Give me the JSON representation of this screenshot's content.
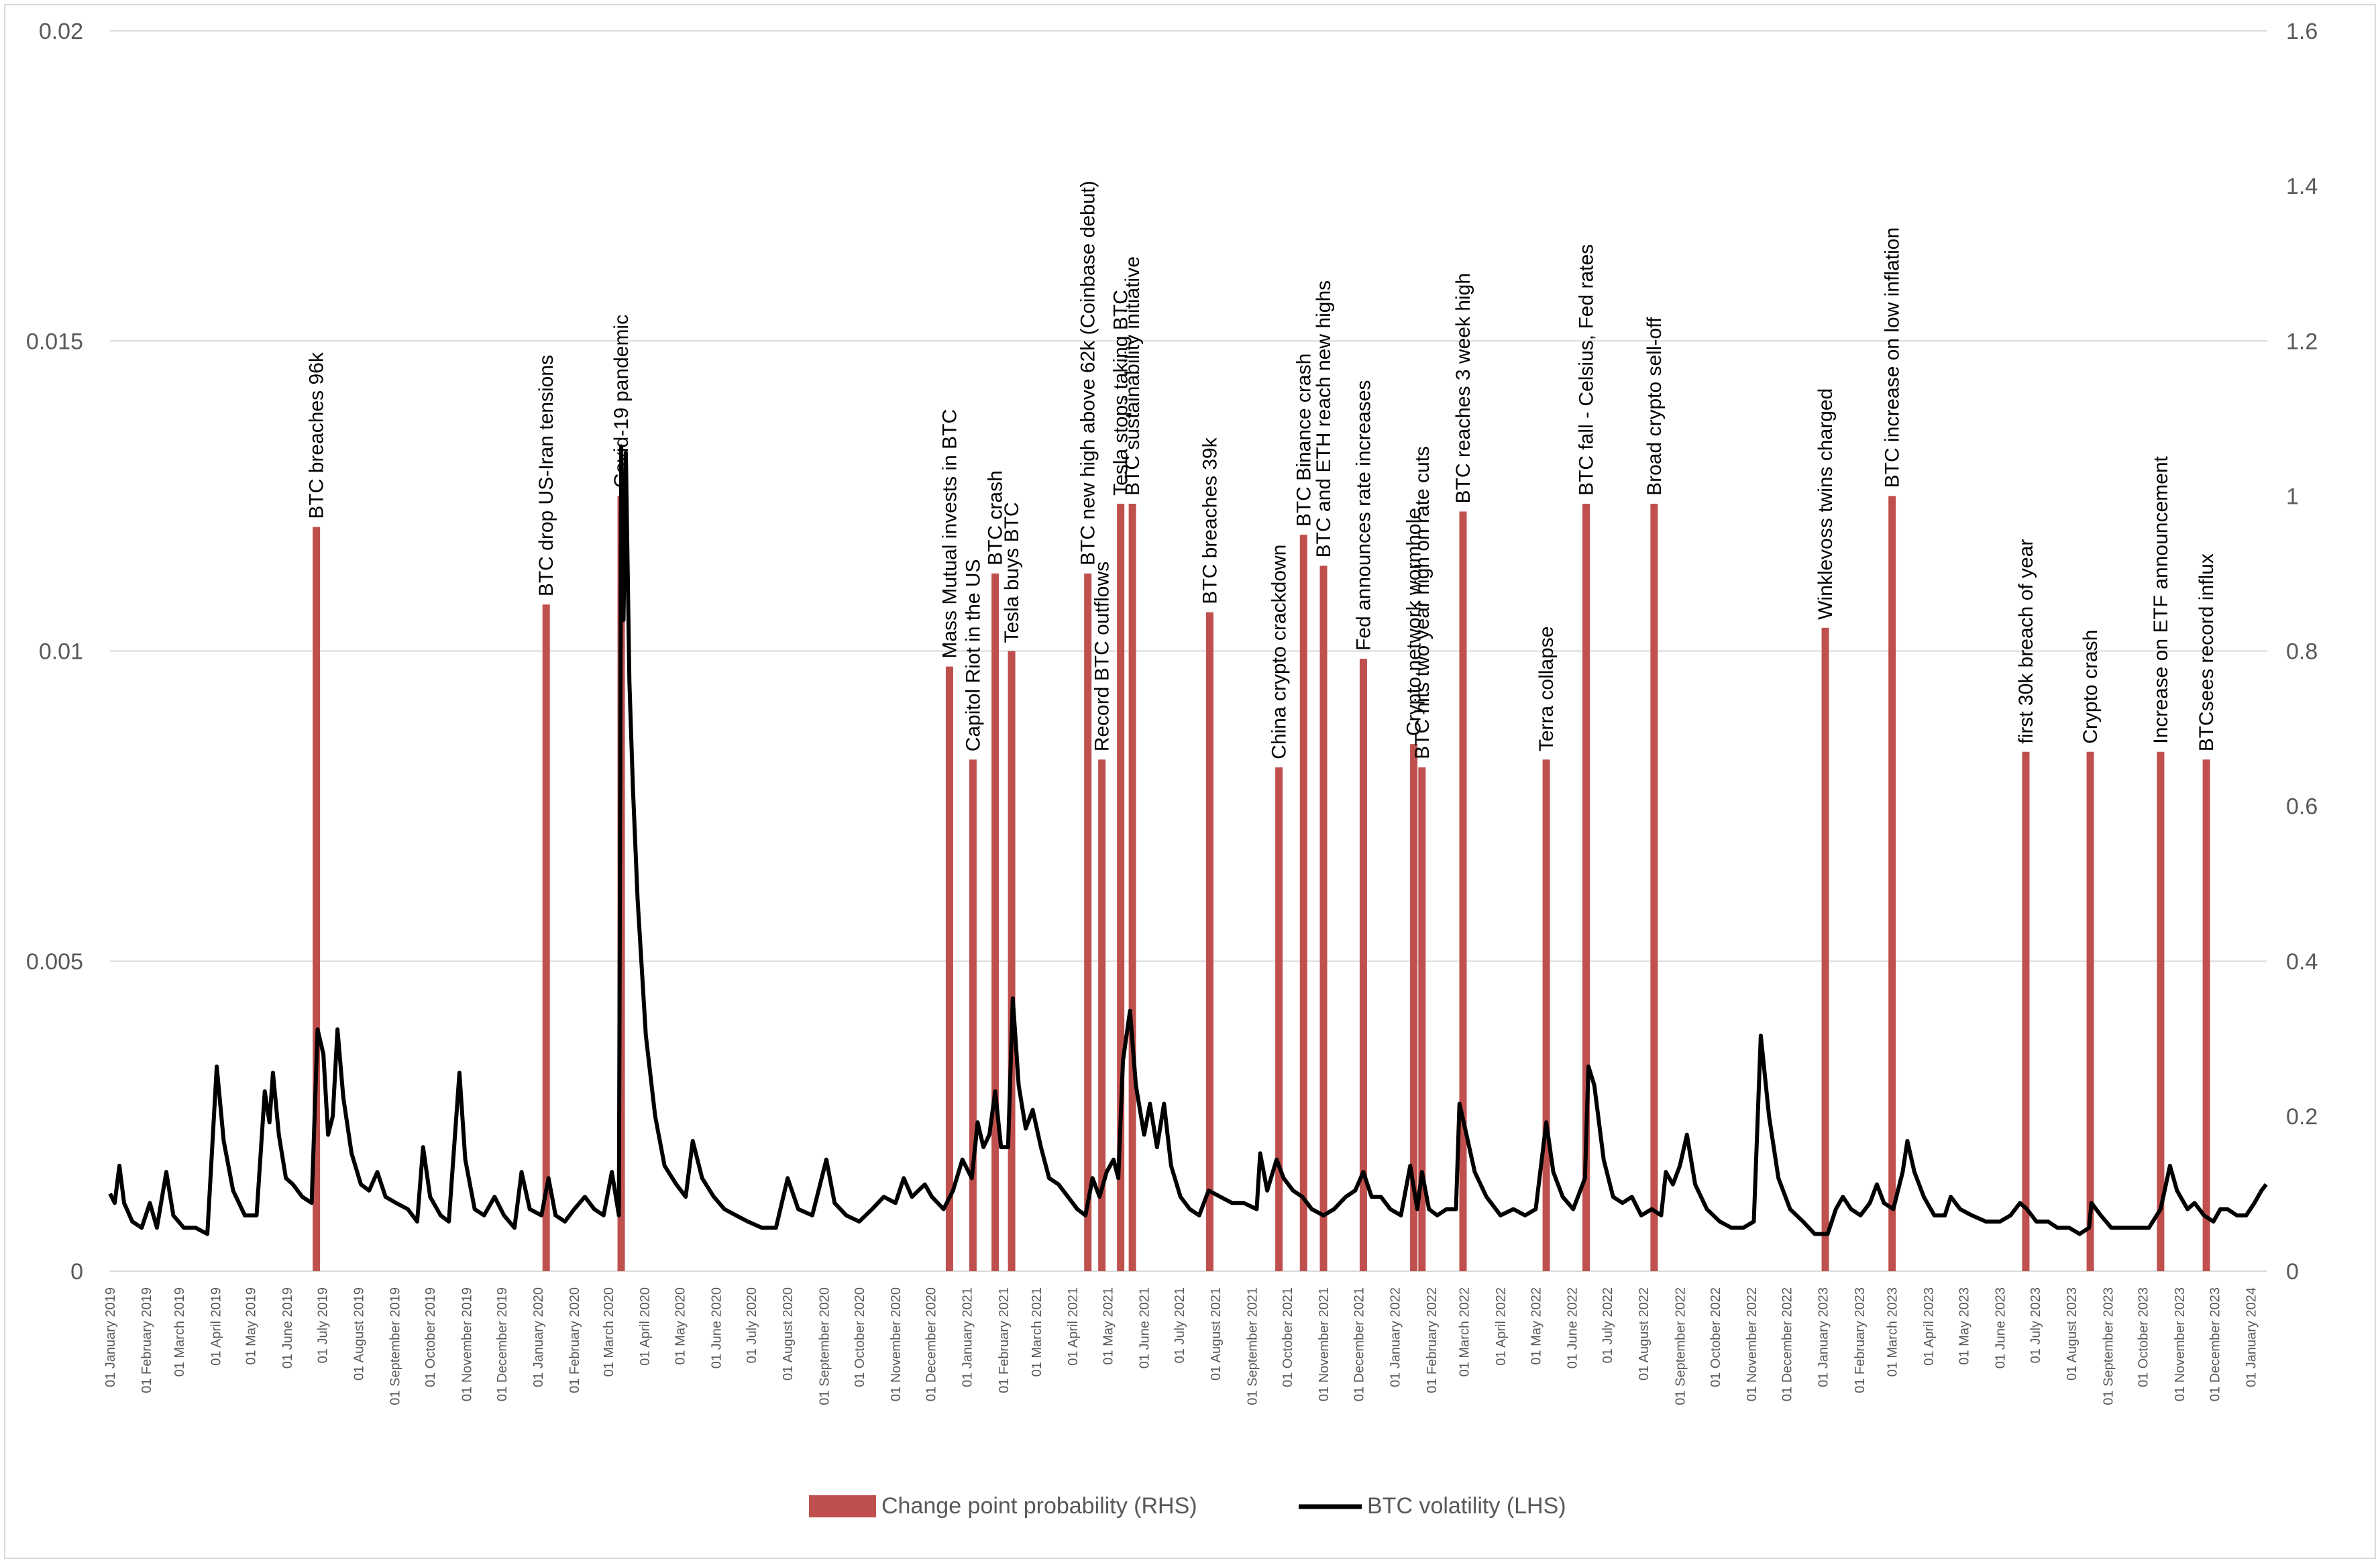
{
  "chart_data": {
    "type": "bar+line",
    "title": "",
    "left_axis": {
      "label": "BTC volatility (LHS)",
      "range": [
        0,
        0.02
      ],
      "ticks": [
        "0",
        "0.005",
        "0.01",
        "0.015",
        "0.02"
      ],
      "tick_values": [
        0,
        0.005,
        0.01,
        0.015,
        0.02
      ]
    },
    "right_axis": {
      "label": "Change point probability (RHS)",
      "range": [
        0,
        1.6
      ],
      "ticks": [
        "0",
        "0.2",
        "0.4",
        "0.6",
        "0.8",
        "1",
        "1.2",
        "1.4",
        "1.6"
      ],
      "tick_values": [
        0,
        0.2,
        0.4,
        0.6,
        0.8,
        1,
        1.2,
        1.4,
        1.6
      ]
    },
    "grid": true,
    "x_range": [
      "2019-01-01",
      "2024-01-15"
    ],
    "x_ticks": [
      "01 January 2019",
      "01 February 2019",
      "01 March 2019",
      "01 April 2019",
      "01 May 2019",
      "01 June 2019",
      "01 July 2019",
      "01 August 2019",
      "01 September 2019",
      "01 October 2019",
      "01 November 2019",
      "01 December 2019",
      "01 January 2020",
      "01 February 2020",
      "01 March 2020",
      "01 April 2020",
      "01 May 2020",
      "01 June 2020",
      "01 July 2020",
      "01 August 2020",
      "01 September 2020",
      "01 October 2020",
      "01 November 2020",
      "01 December 2020",
      "01 January 2021",
      "01 February 2021",
      "01 March 2021",
      "01 April 2021",
      "01 May 2021",
      "01 June 2021",
      "01 July 2021",
      "01 August 2021",
      "01 September 2021",
      "01 October 2021",
      "01 November 2021",
      "01 December 2021",
      "01 January 2022",
      "01 February 2022",
      "01 March 2022",
      "01 April 2022",
      "01 May 2022",
      "01 June 2022",
      "01 July 2022",
      "01 August 2022",
      "01 September 2022",
      "01 October 2022",
      "01 November 2022",
      "01 December 2022",
      "01 January 2023",
      "01 February 2023",
      "01 March 2023",
      "01 April 2023",
      "01 May 2023",
      "01 June 2023",
      "01 July 2023",
      "01 August 2023",
      "01 September 2023",
      "01 October 2023",
      "01 November 2023",
      "01 December 2023",
      "01 January 2024"
    ],
    "legend": [
      "Change point probability (RHS)",
      "BTC volatility (LHS)"
    ],
    "legend_position": "bottom",
    "colors": {
      "bar": "#c0504d",
      "line": "#000000",
      "grid": "#d9d9d9",
      "text": "#595959"
    },
    "change_points": [
      {
        "date": "2019-06-26",
        "prob": 0.96,
        "label": "BTC breaches 96k"
      },
      {
        "date": "2020-01-08",
        "prob": 0.86,
        "label": "BTC drop US-Iran tensions"
      },
      {
        "date": "2020-03-12",
        "prob": 1.0,
        "label": "Covid-19 pandemic"
      },
      {
        "date": "2020-12-17",
        "prob": 0.78,
        "label": "Mass Mutual invests in BTC"
      },
      {
        "date": "2021-01-06",
        "prob": 0.66,
        "label": "Capitol Riot in the US"
      },
      {
        "date": "2021-01-25",
        "prob": 0.9,
        "label": "BTC crash"
      },
      {
        "date": "2021-02-08",
        "prob": 0.8,
        "label": "Tesla buys BTC"
      },
      {
        "date": "2021-04-14",
        "prob": 0.9,
        "label": "BTC new high above 62k (Coinbase debut)"
      },
      {
        "date": "2021-04-26",
        "prob": 0.66,
        "label": "Record BTC outflows"
      },
      {
        "date": "2021-05-12",
        "prob": 0.99,
        "label": "Tesla stops taking BTC"
      },
      {
        "date": "2021-05-22",
        "prob": 0.99,
        "label": "BTC sustainability initiative"
      },
      {
        "date": "2021-07-27",
        "prob": 0.85,
        "label": "BTC breaches 39k"
      },
      {
        "date": "2021-09-24",
        "prob": 0.65,
        "label": "China crypto crackdown"
      },
      {
        "date": "2021-10-15",
        "prob": 0.95,
        "label": "BTC Binance crash"
      },
      {
        "date": "2021-11-01",
        "prob": 0.91,
        "label": "BTC and ETH reach new highs"
      },
      {
        "date": "2021-12-05",
        "prob": 0.79,
        "label": "Fed announces rate increases"
      },
      {
        "date": "2022-01-17",
        "prob": 0.68,
        "label": "Crypto network wormhole"
      },
      {
        "date": "2022-01-24",
        "prob": 0.65,
        "label": "BTC hits two year high on rate cuts"
      },
      {
        "date": "2022-02-28",
        "prob": 0.98,
        "label": "BTC reaches 3 week high"
      },
      {
        "date": "2022-05-10",
        "prob": 0.66,
        "label": "Terra collapse"
      },
      {
        "date": "2022-06-13",
        "prob": 0.99,
        "label": "BTC fall - Celsius, Fed rates"
      },
      {
        "date": "2022-08-10",
        "prob": 0.99,
        "label": "Broad crypto sell-off"
      },
      {
        "date": "2023-01-03",
        "prob": 0.83,
        "label": "Winklevoss twins charged"
      },
      {
        "date": "2023-03-01",
        "prob": 1.0,
        "label": "BTC increase on low inflation"
      },
      {
        "date": "2023-06-23",
        "prob": 0.67,
        "label": "first 30k breach of year"
      },
      {
        "date": "2023-08-17",
        "prob": 0.67,
        "label": "Crypto crash"
      },
      {
        "date": "2023-10-16",
        "prob": 0.67,
        "label": "Increase on ETF announcement"
      },
      {
        "date": "2023-11-24",
        "prob": 0.66,
        "label": "BTCsees record influx"
      }
    ],
    "volatility_series": [
      [
        "2019-01-01",
        0.00125
      ],
      [
        "2019-01-05",
        0.0011
      ],
      [
        "2019-01-09",
        0.0017
      ],
      [
        "2019-01-13",
        0.0011
      ],
      [
        "2019-01-20",
        0.0008
      ],
      [
        "2019-01-28",
        0.0007
      ],
      [
        "2019-02-04",
        0.0011
      ],
      [
        "2019-02-10",
        0.0007
      ],
      [
        "2019-02-18",
        0.0016
      ],
      [
        "2019-02-24",
        0.0009
      ],
      [
        "2019-03-05",
        0.0007
      ],
      [
        "2019-03-15",
        0.0007
      ],
      [
        "2019-03-25",
        0.0006
      ],
      [
        "2019-04-02",
        0.0033
      ],
      [
        "2019-04-08",
        0.0021
      ],
      [
        "2019-04-16",
        0.0013
      ],
      [
        "2019-04-26",
        0.0009
      ],
      [
        "2019-05-06",
        0.0009
      ],
      [
        "2019-05-13",
        0.0029
      ],
      [
        "2019-05-17",
        0.0024
      ],
      [
        "2019-05-20",
        0.0032
      ],
      [
        "2019-05-25",
        0.0022
      ],
      [
        "2019-05-31",
        0.0015
      ],
      [
        "2019-06-06",
        0.0014
      ],
      [
        "2019-06-14",
        0.0012
      ],
      [
        "2019-06-22",
        0.0011
      ],
      [
        "2019-06-27",
        0.0039
      ],
      [
        "2019-07-02",
        0.0035
      ],
      [
        "2019-07-06",
        0.0022
      ],
      [
        "2019-07-10",
        0.0025
      ],
      [
        "2019-07-14",
        0.0039
      ],
      [
        "2019-07-19",
        0.0028
      ],
      [
        "2019-07-26",
        0.0019
      ],
      [
        "2019-08-03",
        0.0014
      ],
      [
        "2019-08-10",
        0.0013
      ],
      [
        "2019-08-17",
        0.0016
      ],
      [
        "2019-08-24",
        0.0012
      ],
      [
        "2019-09-02",
        0.0011
      ],
      [
        "2019-09-12",
        0.001
      ],
      [
        "2019-09-20",
        0.0008
      ],
      [
        "2019-09-25",
        0.002
      ],
      [
        "2019-10-01",
        0.0012
      ],
      [
        "2019-10-10",
        0.0009
      ],
      [
        "2019-10-17",
        0.0008
      ],
      [
        "2019-10-26",
        0.0032
      ],
      [
        "2019-10-31",
        0.0018
      ],
      [
        "2019-11-08",
        0.001
      ],
      [
        "2019-11-16",
        0.0009
      ],
      [
        "2019-11-25",
        0.0012
      ],
      [
        "2019-12-03",
        0.0009
      ],
      [
        "2019-12-12",
        0.0007
      ],
      [
        "2019-12-18",
        0.0016
      ],
      [
        "2019-12-25",
        0.001
      ],
      [
        "2020-01-04",
        0.0009
      ],
      [
        "2020-01-10",
        0.0015
      ],
      [
        "2020-01-16",
        0.0009
      ],
      [
        "2020-01-24",
        0.0008
      ],
      [
        "2020-02-01",
        0.001
      ],
      [
        "2020-02-10",
        0.0012
      ],
      [
        "2020-02-18",
        0.001
      ],
      [
        "2020-02-26",
        0.0009
      ],
      [
        "2020-03-04",
        0.0016
      ],
      [
        "2020-03-10",
        0.0009
      ],
      [
        "2020-03-12",
        0.0133
      ],
      [
        "2020-03-14",
        0.0105
      ],
      [
        "2020-03-16",
        0.0132
      ],
      [
        "2020-03-19",
        0.0095
      ],
      [
        "2020-03-22",
        0.0078
      ],
      [
        "2020-03-26",
        0.006
      ],
      [
        "2020-04-02",
        0.0038
      ],
      [
        "2020-04-10",
        0.0025
      ],
      [
        "2020-04-18",
        0.0017
      ],
      [
        "2020-04-28",
        0.0014
      ],
      [
        "2020-05-06",
        0.0012
      ],
      [
        "2020-05-12",
        0.0021
      ],
      [
        "2020-05-20",
        0.0015
      ],
      [
        "2020-05-30",
        0.0012
      ],
      [
        "2020-06-08",
        0.001
      ],
      [
        "2020-06-18",
        0.0009
      ],
      [
        "2020-06-28",
        0.0008
      ],
      [
        "2020-07-10",
        0.0007
      ],
      [
        "2020-07-22",
        0.0007
      ],
      [
        "2020-08-01",
        0.0015
      ],
      [
        "2020-08-10",
        0.001
      ],
      [
        "2020-08-22",
        0.0009
      ],
      [
        "2020-09-03",
        0.0018
      ],
      [
        "2020-09-10",
        0.0011
      ],
      [
        "2020-09-20",
        0.0009
      ],
      [
        "2020-10-01",
        0.0008
      ],
      [
        "2020-10-12",
        0.001
      ],
      [
        "2020-10-22",
        0.0012
      ],
      [
        "2020-11-01",
        0.0011
      ],
      [
        "2020-11-08",
        0.0015
      ],
      [
        "2020-11-15",
        0.0012
      ],
      [
        "2020-11-26",
        0.0014
      ],
      [
        "2020-12-02",
        0.0012
      ],
      [
        "2020-12-12",
        0.001
      ],
      [
        "2020-12-20",
        0.0013
      ],
      [
        "2020-12-28",
        0.0018
      ],
      [
        "2021-01-05",
        0.0015
      ],
      [
        "2021-01-10",
        0.0024
      ],
      [
        "2021-01-15",
        0.002
      ],
      [
        "2021-01-20",
        0.0022
      ],
      [
        "2021-01-25",
        0.0029
      ],
      [
        "2021-01-30",
        0.002
      ],
      [
        "2021-02-05",
        0.002
      ],
      [
        "2021-02-09",
        0.0044
      ],
      [
        "2021-02-14",
        0.003
      ],
      [
        "2021-02-20",
        0.0023
      ],
      [
        "2021-02-26",
        0.0026
      ],
      [
        "2021-03-05",
        0.002
      ],
      [
        "2021-03-12",
        0.0015
      ],
      [
        "2021-03-20",
        0.0014
      ],
      [
        "2021-03-28",
        0.0012
      ],
      [
        "2021-04-05",
        0.001
      ],
      [
        "2021-04-12",
        0.0009
      ],
      [
        "2021-04-18",
        0.0015
      ],
      [
        "2021-04-24",
        0.0012
      ],
      [
        "2021-04-30",
        0.0016
      ],
      [
        "2021-05-06",
        0.0018
      ],
      [
        "2021-05-10",
        0.0015
      ],
      [
        "2021-05-14",
        0.0034
      ],
      [
        "2021-05-20",
        0.0042
      ],
      [
        "2021-05-25",
        0.003
      ],
      [
        "2021-06-01",
        0.0022
      ],
      [
        "2021-06-06",
        0.0027
      ],
      [
        "2021-06-12",
        0.002
      ],
      [
        "2021-06-18",
        0.0027
      ],
      [
        "2021-06-24",
        0.0017
      ],
      [
        "2021-07-02",
        0.0012
      ],
      [
        "2021-07-10",
        0.001
      ],
      [
        "2021-07-18",
        0.0009
      ],
      [
        "2021-07-26",
        0.0013
      ],
      [
        "2021-08-05",
        0.0012
      ],
      [
        "2021-08-15",
        0.0011
      ],
      [
        "2021-08-25",
        0.0011
      ],
      [
        "2021-09-05",
        0.001
      ],
      [
        "2021-09-08",
        0.0019
      ],
      [
        "2021-09-14",
        0.0013
      ],
      [
        "2021-09-22",
        0.0018
      ],
      [
        "2021-09-28",
        0.0015
      ],
      [
        "2021-10-06",
        0.0013
      ],
      [
        "2021-10-14",
        0.0012
      ],
      [
        "2021-10-22",
        0.001
      ],
      [
        "2021-11-01",
        0.0009
      ],
      [
        "2021-11-10",
        0.001
      ],
      [
        "2021-11-20",
        0.0012
      ],
      [
        "2021-11-28",
        0.0013
      ],
      [
        "2021-12-05",
        0.0016
      ],
      [
        "2021-12-12",
        0.0012
      ],
      [
        "2021-12-20",
        0.0012
      ],
      [
        "2021-12-28",
        0.001
      ],
      [
        "2022-01-06",
        0.0009
      ],
      [
        "2022-01-14",
        0.0017
      ],
      [
        "2022-01-20",
        0.001
      ],
      [
        "2022-01-24",
        0.0016
      ],
      [
        "2022-01-30",
        0.001
      ],
      [
        "2022-02-06",
        0.0009
      ],
      [
        "2022-02-14",
        0.001
      ],
      [
        "2022-02-22",
        0.001
      ],
      [
        "2022-02-25",
        0.0027
      ],
      [
        "2022-03-03",
        0.0022
      ],
      [
        "2022-03-10",
        0.0016
      ],
      [
        "2022-03-20",
        0.0012
      ],
      [
        "2022-04-01",
        0.0009
      ],
      [
        "2022-04-12",
        0.001
      ],
      [
        "2022-04-22",
        0.0009
      ],
      [
        "2022-05-01",
        0.001
      ],
      [
        "2022-05-10",
        0.0024
      ],
      [
        "2022-05-16",
        0.0016
      ],
      [
        "2022-05-24",
        0.0012
      ],
      [
        "2022-06-02",
        0.001
      ],
      [
        "2022-06-12",
        0.0015
      ],
      [
        "2022-06-15",
        0.0033
      ],
      [
        "2022-06-20",
        0.003
      ],
      [
        "2022-06-28",
        0.0018
      ],
      [
        "2022-07-06",
        0.0012
      ],
      [
        "2022-07-14",
        0.0011
      ],
      [
        "2022-07-22",
        0.0012
      ],
      [
        "2022-07-30",
        0.0009
      ],
      [
        "2022-08-08",
        0.001
      ],
      [
        "2022-08-16",
        0.0009
      ],
      [
        "2022-08-20",
        0.0016
      ],
      [
        "2022-08-26",
        0.0014
      ],
      [
        "2022-09-01",
        0.0017
      ],
      [
        "2022-09-07",
        0.0022
      ],
      [
        "2022-09-14",
        0.0014
      ],
      [
        "2022-09-24",
        0.001
      ],
      [
        "2022-10-05",
        0.0008
      ],
      [
        "2022-10-15",
        0.0007
      ],
      [
        "2022-10-25",
        0.0007
      ],
      [
        "2022-11-03",
        0.0008
      ],
      [
        "2022-11-09",
        0.0038
      ],
      [
        "2022-11-16",
        0.0025
      ],
      [
        "2022-11-24",
        0.0015
      ],
      [
        "2022-12-04",
        0.001
      ],
      [
        "2022-12-15",
        0.0008
      ],
      [
        "2022-12-25",
        0.0006
      ],
      [
        "2023-01-05",
        0.0006
      ],
      [
        "2023-01-12",
        0.001
      ],
      [
        "2023-01-18",
        0.0012
      ],
      [
        "2023-01-25",
        0.001
      ],
      [
        "2023-02-02",
        0.0009
      ],
      [
        "2023-02-10",
        0.0011
      ],
      [
        "2023-02-16",
        0.0014
      ],
      [
        "2023-02-22",
        0.0011
      ],
      [
        "2023-03-02",
        0.001
      ],
      [
        "2023-03-10",
        0.0016
      ],
      [
        "2023-03-14",
        0.0021
      ],
      [
        "2023-03-20",
        0.0016
      ],
      [
        "2023-03-28",
        0.0012
      ],
      [
        "2023-04-06",
        0.0009
      ],
      [
        "2023-04-15",
        0.0009
      ],
      [
        "2023-04-20",
        0.0012
      ],
      [
        "2023-04-28",
        0.001
      ],
      [
        "2023-05-08",
        0.0009
      ],
      [
        "2023-05-20",
        0.0008
      ],
      [
        "2023-06-01",
        0.0008
      ],
      [
        "2023-06-10",
        0.0009
      ],
      [
        "2023-06-18",
        0.0011
      ],
      [
        "2023-06-24",
        0.001
      ],
      [
        "2023-07-02",
        0.0008
      ],
      [
        "2023-07-12",
        0.0008
      ],
      [
        "2023-07-20",
        0.0007
      ],
      [
        "2023-07-30",
        0.0007
      ],
      [
        "2023-08-08",
        0.0006
      ],
      [
        "2023-08-16",
        0.0007
      ],
      [
        "2023-08-18",
        0.0011
      ],
      [
        "2023-08-26",
        0.0009
      ],
      [
        "2023-09-04",
        0.0007
      ],
      [
        "2023-09-14",
        0.0007
      ],
      [
        "2023-09-26",
        0.0007
      ],
      [
        "2023-10-06",
        0.0007
      ],
      [
        "2023-10-16",
        0.001
      ],
      [
        "2023-10-24",
        0.0017
      ],
      [
        "2023-10-30",
        0.0013
      ],
      [
        "2023-11-08",
        0.001
      ],
      [
        "2023-11-14",
        0.0011
      ],
      [
        "2023-11-22",
        0.0009
      ],
      [
        "2023-11-30",
        0.0008
      ],
      [
        "2023-12-06",
        0.001
      ],
      [
        "2023-12-12",
        0.001
      ],
      [
        "2023-12-20",
        0.0009
      ],
      [
        "2023-12-28",
        0.0009
      ],
      [
        "2024-01-04",
        0.0011
      ],
      [
        "2024-01-10",
        0.0013
      ],
      [
        "2024-01-14",
        0.0014
      ]
    ]
  }
}
